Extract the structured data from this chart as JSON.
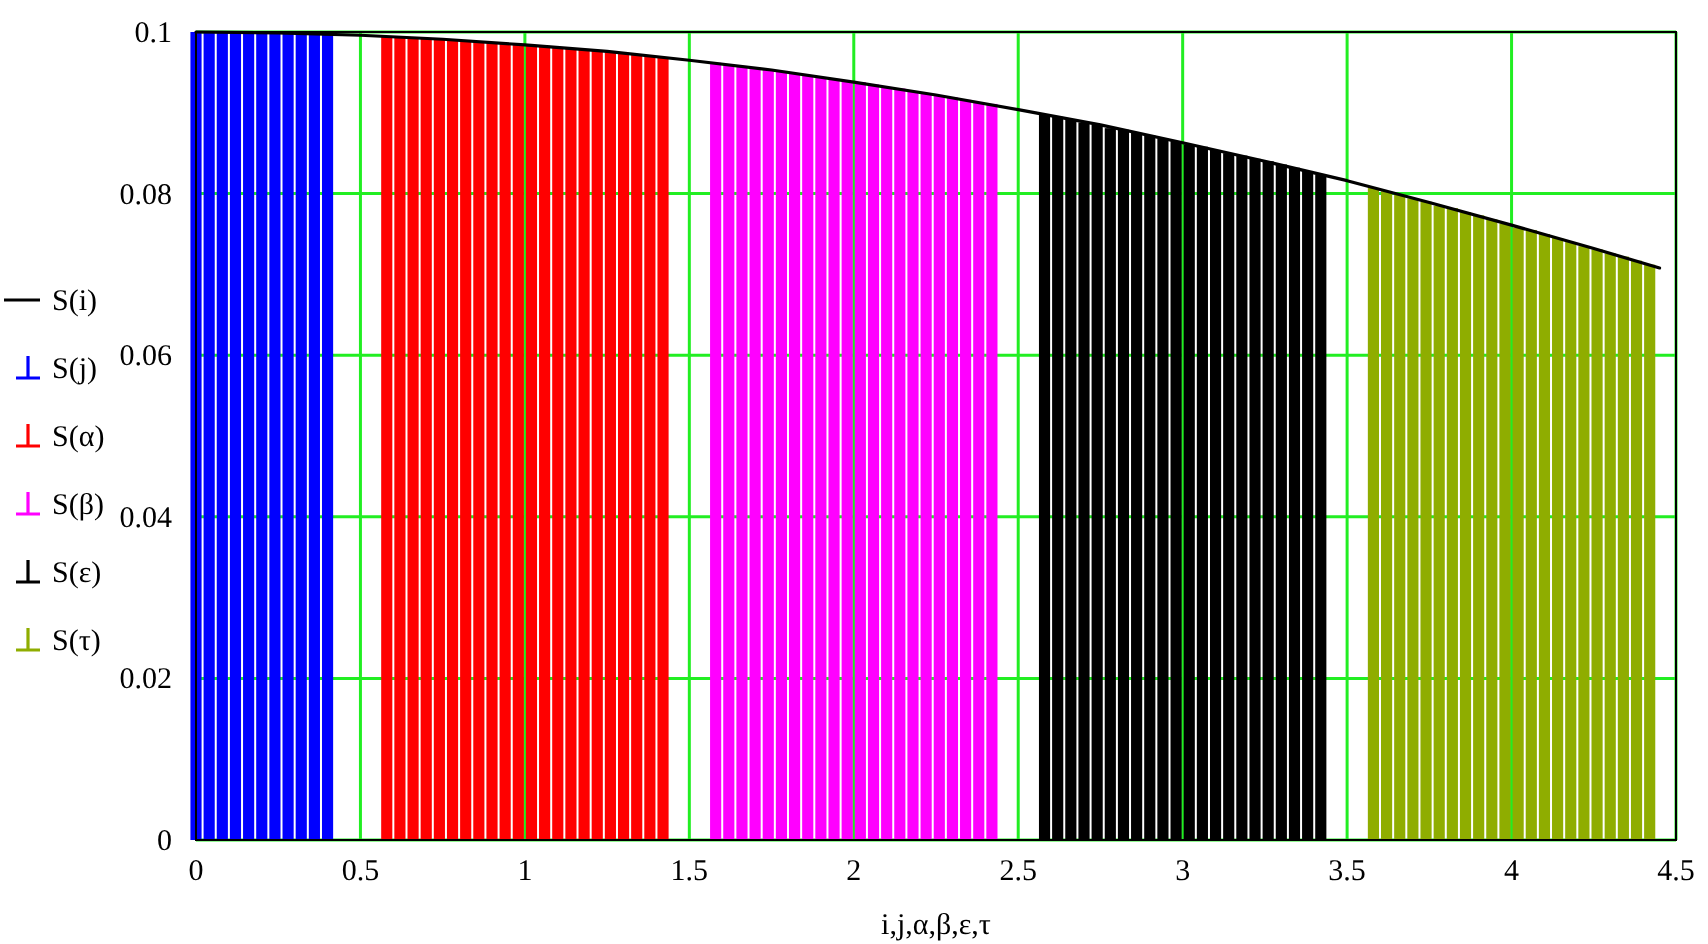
{
  "chart_data": {
    "type": "bar",
    "xlabel": "i,j,α,β,ε,τ",
    "xlim": [
      0,
      4.5
    ],
    "xticks": [
      0,
      0.5,
      1,
      1.5,
      2,
      2.5,
      3,
      3.5,
      4,
      4.5
    ],
    "ylim": [
      0,
      0.1
    ],
    "yticks": [
      0,
      0.02,
      0.04,
      0.06,
      0.08,
      0.1
    ],
    "grid": true,
    "legend": "left",
    "series": [
      {
        "name": "S(j)",
        "color": "#0000ff",
        "x": [
          0,
          0.04,
          0.08,
          0.12,
          0.16,
          0.2,
          0.24,
          0.28,
          0.32,
          0.36,
          0.4
        ],
        "values": [
          0.1,
          0.1,
          0.1,
          0.1,
          0.1,
          0.0999,
          0.0999,
          0.0999,
          0.0998,
          0.0998,
          0.0997
        ]
      },
      {
        "name": "S(α)",
        "color": "#ff0000",
        "x": [
          0.58,
          0.62,
          0.66,
          0.7,
          0.74,
          0.78,
          0.82,
          0.86,
          0.9,
          0.94,
          0.98,
          1.02,
          1.06,
          1.1,
          1.14,
          1.18,
          1.22,
          1.26,
          1.3,
          1.34,
          1.38,
          1.42
        ],
        "values": [
          0.0995,
          0.0994,
          0.0993,
          0.0992,
          0.0991,
          0.099,
          0.0989,
          0.0988,
          0.0987,
          0.0986,
          0.0984,
          0.0983,
          0.0983,
          0.0981,
          0.098,
          0.0979,
          0.0977,
          0.0975,
          0.0974,
          0.0972,
          0.097,
          0.0969
        ]
      },
      {
        "name": "S(β)",
        "color": "#ff00ff",
        "x": [
          1.58,
          1.62,
          1.66,
          1.7,
          1.74,
          1.78,
          1.82,
          1.86,
          1.9,
          1.94,
          1.98,
          2.02,
          2.06,
          2.1,
          2.14,
          2.18,
          2.22,
          2.26,
          2.3,
          2.34,
          2.38,
          2.42
        ],
        "values": [
          0.0962,
          0.096,
          0.0958,
          0.0956,
          0.0953,
          0.0951,
          0.0949,
          0.0946,
          0.0944,
          0.0942,
          0.0939,
          0.0938,
          0.0935,
          0.0932,
          0.093,
          0.0927,
          0.0924,
          0.0921,
          0.0919,
          0.0916,
          0.0913,
          0.0911
        ]
      },
      {
        "name": "S(ε)",
        "color": "#000000",
        "x": [
          2.58,
          2.62,
          2.66,
          2.7,
          2.74,
          2.78,
          2.82,
          2.86,
          2.9,
          2.94,
          2.98,
          3.02,
          3.06,
          3.1,
          3.14,
          3.18,
          3.22,
          3.26,
          3.3,
          3.34,
          3.38,
          3.42
        ],
        "values": [
          0.0898,
          0.0895,
          0.0892,
          0.0888,
          0.0885,
          0.0881,
          0.0879,
          0.0875,
          0.0872,
          0.0868,
          0.0865,
          0.0861,
          0.0858,
          0.0854,
          0.085,
          0.0847,
          0.0843,
          0.084,
          0.0836,
          0.0832,
          0.0828,
          0.0823
        ]
      },
      {
        "name": "S(τ)",
        "color": "#8fad00",
        "x": [
          3.58,
          3.62,
          3.66,
          3.7,
          3.74,
          3.78,
          3.82,
          3.86,
          3.9,
          3.94,
          3.98,
          4.02,
          4.06,
          4.1,
          4.14,
          4.18,
          4.22,
          4.26,
          4.3,
          4.34,
          4.38,
          4.42
        ],
        "values": [
          0.0807,
          0.0803,
          0.0799,
          0.0794,
          0.079,
          0.0785,
          0.0782,
          0.0777,
          0.0773,
          0.0768,
          0.0763,
          0.0758,
          0.0755,
          0.075,
          0.0745,
          0.074,
          0.0735,
          0.0731,
          0.0726,
          0.0722,
          0.0717,
          0.0712
        ]
      },
      {
        "name": "S(i)",
        "type": "line",
        "color": "#000000",
        "x": [
          0,
          0.25,
          0.5,
          0.75,
          1,
          1.25,
          1.5,
          1.75,
          2,
          2.25,
          2.5,
          2.75,
          3,
          3.25,
          3.5,
          3.75,
          4,
          4.25,
          4.45
        ],
        "values": [
          0.1,
          0.0999,
          0.0996,
          0.0991,
          0.0984,
          0.0976,
          0.0965,
          0.0953,
          0.0938,
          0.0922,
          0.0904,
          0.0885,
          0.0863,
          0.084,
          0.0816,
          0.0789,
          0.0761,
          0.0732,
          0.0708
        ]
      }
    ]
  }
}
